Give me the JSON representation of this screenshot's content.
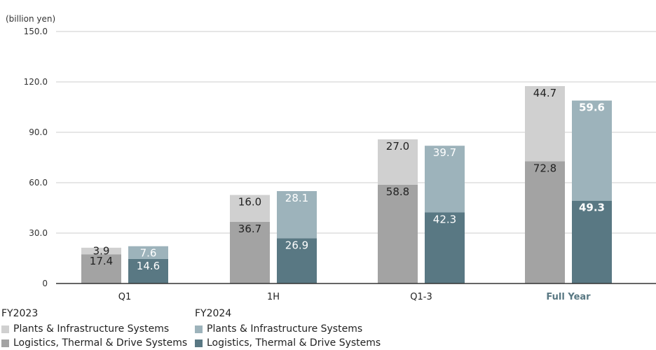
{
  "chart_data": {
    "type": "bar",
    "stacked": true,
    "unit_label": "(billion yen)",
    "categories": [
      "Q1",
      "1H",
      "Q1-3",
      "Full Year"
    ],
    "highlight_category": "Full Year",
    "ylim": [
      0,
      150
    ],
    "yticks": [
      0,
      30,
      60,
      90,
      120,
      150
    ],
    "ytick_labels": [
      "0",
      "30.0",
      "60.0",
      "90.0",
      "120.0",
      "150.0"
    ],
    "grid": true,
    "groups": [
      {
        "name": "FY2023",
        "series": [
          {
            "name": "Logistics, Thermal & Drive Systems",
            "values": [
              17.4,
              36.7,
              58.8,
              72.8
            ],
            "labels": [
              "17.4",
              "36.7",
              "58.8",
              "72.8"
            ],
            "color": "#a3a3a3"
          },
          {
            "name": "Plants & Infrastructure Systems",
            "values": [
              3.9,
              16.0,
              27.0,
              44.7
            ],
            "labels": [
              "3.9",
              "16.0",
              "27.0",
              "44.7"
            ],
            "color": "#d0d0d0"
          }
        ]
      },
      {
        "name": "FY2024",
        "series": [
          {
            "name": "Logistics, Thermal & Drive Systems",
            "values": [
              14.6,
              26.9,
              42.3,
              49.3
            ],
            "labels": [
              "14.6",
              "26.9",
              "42.3",
              "49.3"
            ],
            "color": "#597883"
          },
          {
            "name": "Plants & Infrastructure Systems",
            "values": [
              7.6,
              28.1,
              39.7,
              59.6
            ],
            "labels": [
              "7.6",
              "28.1",
              "39.7",
              "59.6"
            ],
            "color": "#9db3bb"
          }
        ]
      }
    ]
  },
  "colors": {
    "grid": "#cccccc",
    "axis": "#333333",
    "highlight_text": "#597883"
  }
}
